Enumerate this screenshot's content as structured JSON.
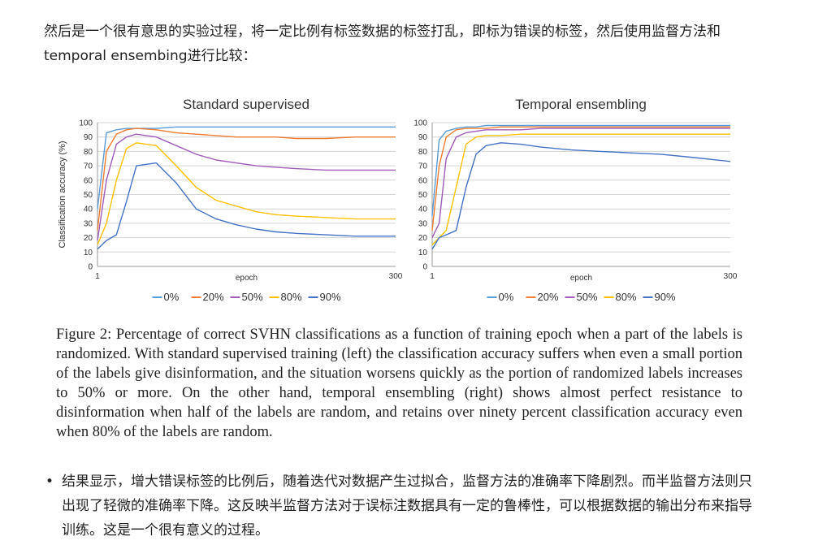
{
  "intro_text": "然后是一个很有意思的实验过程，将一定比例有标签数据的标签打乱，即标为错误的标签，然后使用监督方法和temporal ensembing进行比较：",
  "caption": "Figure 2: Percentage of correct SVHN classifications as a function of training epoch when a part of the labels is randomized. With standard supervised training (left) the classification accuracy suffers when even a small portion of the labels give disinformation, and the situation worsens quickly as the portion of randomized labels increases to 50% or more. On the other hand, temporal ensembling (right) shows almost perfect resistance to disinformation when half of the labels are random, and retains over ninety percent classification accuracy even when 80% of the labels are random.",
  "bullet_symbol": "•",
  "bullet_text": "结果显示，增大错误标签的比例后，随着迭代对数据产生过拟合，监督方法的准确率下降剧烈。而半监督方法则只出现了轻微的准确率下降。这反映半监督方法对于误标注数据具有一定的鲁棒性，可以根据数据的输出分布来指导训练。这是一个很有意义的过程。",
  "chart_data": [
    {
      "type": "line",
      "title": "Standard supervised",
      "xlabel": "epoch",
      "ylabel": "Classification accuracy (%)",
      "xlim": [
        1,
        300
      ],
      "ylim": [
        0,
        100
      ],
      "x_ticks": [
        1,
        300
      ],
      "y_ticks": [
        0,
        10,
        20,
        30,
        40,
        50,
        60,
        70,
        80,
        90,
        100
      ],
      "grid": true,
      "legend": "bottom",
      "x": [
        1,
        10,
        20,
        30,
        40,
        60,
        80,
        100,
        120,
        140,
        160,
        180,
        200,
        230,
        260,
        300
      ],
      "series": [
        {
          "name": "0%",
          "color": "#5b9bd5",
          "values": [
            40,
            93,
            95,
            96,
            96,
            96,
            97,
            97,
            97,
            97,
            97,
            97,
            97,
            97,
            97,
            97
          ]
        },
        {
          "name": "20%",
          "color": "#ed7d31",
          "values": [
            25,
            80,
            92,
            95,
            96,
            95,
            93,
            92,
            91,
            90,
            90,
            90,
            89,
            89,
            90,
            90
          ]
        },
        {
          "name": "50%",
          "color": "#a05cb8",
          "values": [
            18,
            60,
            85,
            90,
            92,
            90,
            84,
            78,
            74,
            72,
            70,
            69,
            68,
            67,
            67,
            67
          ]
        },
        {
          "name": "80%",
          "color": "#ffc000",
          "values": [
            15,
            30,
            60,
            82,
            86,
            84,
            70,
            55,
            46,
            42,
            38,
            36,
            35,
            34,
            33,
            33
          ]
        },
        {
          "name": "90%",
          "color": "#4472c4",
          "values": [
            12,
            18,
            22,
            45,
            70,
            72,
            58,
            40,
            33,
            29,
            26,
            24,
            23,
            22,
            21,
            21
          ]
        }
      ]
    },
    {
      "type": "line",
      "title": "Temporal ensembling",
      "xlabel": "epoch",
      "ylabel": "",
      "xlim": [
        1,
        300
      ],
      "ylim": [
        0,
        100
      ],
      "x_ticks": [
        1,
        300
      ],
      "y_ticks": [
        0,
        10,
        20,
        30,
        40,
        50,
        60,
        70,
        80,
        90,
        100
      ],
      "grid": true,
      "legend": "bottom",
      "x": [
        1,
        8,
        15,
        25,
        35,
        45,
        55,
        70,
        90,
        110,
        140,
        170,
        200,
        230,
        260,
        300
      ],
      "series": [
        {
          "name": "0%",
          "color": "#5b9bd5",
          "values": [
            35,
            88,
            94,
            96,
            97,
            97,
            98,
            98,
            98,
            98,
            98,
            98,
            98,
            98,
            98,
            98
          ]
        },
        {
          "name": "20%",
          "color": "#ed7d31",
          "values": [
            25,
            70,
            90,
            95,
            96,
            96,
            96,
            97,
            97,
            97,
            97,
            97,
            97,
            97,
            97,
            97
          ]
        },
        {
          "name": "50%",
          "color": "#a05cb8",
          "values": [
            20,
            30,
            75,
            90,
            93,
            94,
            95,
            95,
            95,
            96,
            96,
            96,
            96,
            96,
            96,
            96
          ]
        },
        {
          "name": "80%",
          "color": "#ffc000",
          "values": [
            15,
            20,
            25,
            55,
            85,
            90,
            91,
            91,
            92,
            92,
            92,
            92,
            92,
            92,
            92,
            92
          ]
        },
        {
          "name": "90%",
          "color": "#4472c4",
          "values": [
            12,
            20,
            22,
            25,
            55,
            78,
            84,
            86,
            85,
            83,
            81,
            80,
            79,
            78,
            76,
            73
          ]
        }
      ]
    }
  ]
}
